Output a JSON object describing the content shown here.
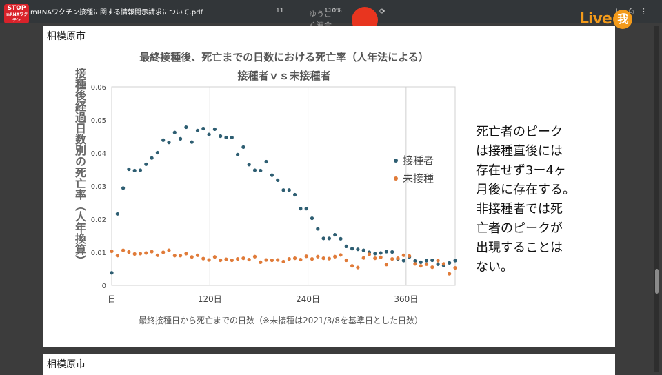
{
  "viewer": {
    "doc_title": "mRNAワクチン接種に関する情報開示請求について.pdf",
    "page_number": "11",
    "zoom": "110%",
    "logo_stop": "STOP",
    "logo_sub": "mRNAワクチン",
    "watermark": "ゆうこく連合",
    "live_logo": "Live",
    "live_badge": "我",
    "icons": [
      "download-icon",
      "print-icon",
      "more-icon",
      "rotate-icon"
    ]
  },
  "page": {
    "city": "相模原市",
    "city_next": "相模原市",
    "note_lines": [
      "死亡者のピーク",
      "は接種直後には",
      "存在せず3ー4ヶ",
      "月後に存在する。",
      "非接種者では死",
      "亡者のピークが",
      "出現することは",
      "ない。"
    ]
  },
  "chart_data": {
    "type": "scatter",
    "title": "最終接種後、死亡までの日数における死亡率（人年法による）",
    "subtitle": "接種者ｖｓ未接種者",
    "xlabel": "最終接種日から死亡までの日数（※未接種は2021/3/8を基準日とした日数）",
    "ylabel": "接種後経過日数別の死亡率（人年換算）",
    "xlim": [
      0,
      420
    ],
    "ylim": [
      0,
      0.06
    ],
    "x_ticks": [
      {
        "value": 0,
        "label": "日"
      },
      {
        "value": 120,
        "label": "120日"
      },
      {
        "value": 240,
        "label": "240日"
      },
      {
        "value": 360,
        "label": "360日"
      }
    ],
    "y_ticks": [
      {
        "value": 0,
        "label": "0"
      },
      {
        "value": 0.01,
        "label": "0.01"
      },
      {
        "value": 0.02,
        "label": "0.02"
      },
      {
        "value": 0.03,
        "label": "0.03"
      },
      {
        "value": 0.04,
        "label": "0.04"
      },
      {
        "value": 0.05,
        "label": "0.05"
      },
      {
        "value": 0.06,
        "label": "0.06"
      }
    ],
    "grid": "vertical",
    "legend": "right",
    "series": [
      {
        "name": "接種者",
        "color": "#2e5e72",
        "points": [
          [
            0,
            0.0038
          ],
          [
            7,
            0.0216
          ],
          [
            14,
            0.0294
          ],
          [
            21,
            0.0351
          ],
          [
            28,
            0.0347
          ],
          [
            35,
            0.0348
          ],
          [
            42,
            0.0366
          ],
          [
            49,
            0.0385
          ],
          [
            56,
            0.0401
          ],
          [
            63,
            0.0439
          ],
          [
            70,
            0.0432
          ],
          [
            77,
            0.0462
          ],
          [
            84,
            0.0443
          ],
          [
            91,
            0.0478
          ],
          [
            98,
            0.0433
          ],
          [
            105,
            0.0468
          ],
          [
            112,
            0.0474
          ],
          [
            119,
            0.0456
          ],
          [
            126,
            0.0472
          ],
          [
            133,
            0.0451
          ],
          [
            140,
            0.0447
          ],
          [
            147,
            0.0447
          ],
          [
            154,
            0.0395
          ],
          [
            161,
            0.0418
          ],
          [
            168,
            0.0365
          ],
          [
            175,
            0.0348
          ],
          [
            182,
            0.0347
          ],
          [
            189,
            0.0374
          ],
          [
            196,
            0.0333
          ],
          [
            203,
            0.0318
          ],
          [
            210,
            0.0288
          ],
          [
            217,
            0.0288
          ],
          [
            224,
            0.0274
          ],
          [
            231,
            0.0232
          ],
          [
            238,
            0.0232
          ],
          [
            245,
            0.0203
          ],
          [
            252,
            0.0171
          ],
          [
            259,
            0.0142
          ],
          [
            266,
            0.0142
          ],
          [
            273,
            0.0153
          ],
          [
            280,
            0.0141
          ],
          [
            287,
            0.0118
          ],
          [
            294,
            0.0111
          ],
          [
            301,
            0.0109
          ],
          [
            308,
            0.0106
          ],
          [
            315,
            0.01
          ],
          [
            322,
            0.0096
          ],
          [
            329,
            0.0098
          ],
          [
            336,
            0.0102
          ],
          [
            343,
            0.0101
          ],
          [
            350,
            0.008
          ],
          [
            357,
            0.0075
          ],
          [
            364,
            0.0086
          ],
          [
            371,
            0.0074
          ],
          [
            378,
            0.007
          ],
          [
            385,
            0.0075
          ],
          [
            392,
            0.0076
          ],
          [
            399,
            0.0064
          ],
          [
            406,
            0.006
          ],
          [
            413,
            0.0068
          ],
          [
            420,
            0.0075
          ]
        ]
      },
      {
        "name": "未接種",
        "color": "#e07b39",
        "points": [
          [
            0,
            0.0103
          ],
          [
            7,
            0.009
          ],
          [
            14,
            0.0106
          ],
          [
            21,
            0.0101
          ],
          [
            28,
            0.0095
          ],
          [
            35,
            0.0096
          ],
          [
            42,
            0.0098
          ],
          [
            49,
            0.0102
          ],
          [
            56,
            0.0091
          ],
          [
            63,
            0.01
          ],
          [
            70,
            0.0106
          ],
          [
            77,
            0.009
          ],
          [
            84,
            0.009
          ],
          [
            91,
            0.0096
          ],
          [
            98,
            0.0086
          ],
          [
            105,
            0.0091
          ],
          [
            112,
            0.0081
          ],
          [
            119,
            0.0077
          ],
          [
            126,
            0.0086
          ],
          [
            133,
            0.0076
          ],
          [
            140,
            0.0079
          ],
          [
            147,
            0.0076
          ],
          [
            154,
            0.008
          ],
          [
            161,
            0.0082
          ],
          [
            168,
            0.0078
          ],
          [
            175,
            0.0087
          ],
          [
            182,
            0.007
          ],
          [
            189,
            0.0077
          ],
          [
            196,
            0.0076
          ],
          [
            203,
            0.0077
          ],
          [
            210,
            0.0072
          ],
          [
            217,
            0.008
          ],
          [
            224,
            0.0082
          ],
          [
            231,
            0.0078
          ],
          [
            238,
            0.0088
          ],
          [
            245,
            0.008
          ],
          [
            252,
            0.0087
          ],
          [
            259,
            0.0082
          ],
          [
            266,
            0.0081
          ],
          [
            273,
            0.0087
          ],
          [
            280,
            0.0092
          ],
          [
            287,
            0.0076
          ],
          [
            294,
            0.0059
          ],
          [
            301,
            0.0054
          ],
          [
            308,
            0.0083
          ],
          [
            315,
            0.0094
          ],
          [
            322,
            0.0082
          ],
          [
            329,
            0.0085
          ],
          [
            336,
            0.0063
          ],
          [
            343,
            0.008
          ],
          [
            350,
            0.0082
          ],
          [
            357,
            0.0091
          ],
          [
            364,
            0.0089
          ],
          [
            371,
            0.0065
          ],
          [
            378,
            0.0059
          ],
          [
            385,
            0.0064
          ],
          [
            392,
            0.0055
          ],
          [
            399,
            0.0075
          ],
          [
            406,
            0.0065
          ],
          [
            413,
            0.0035
          ],
          [
            420,
            0.0053
          ]
        ]
      }
    ]
  }
}
